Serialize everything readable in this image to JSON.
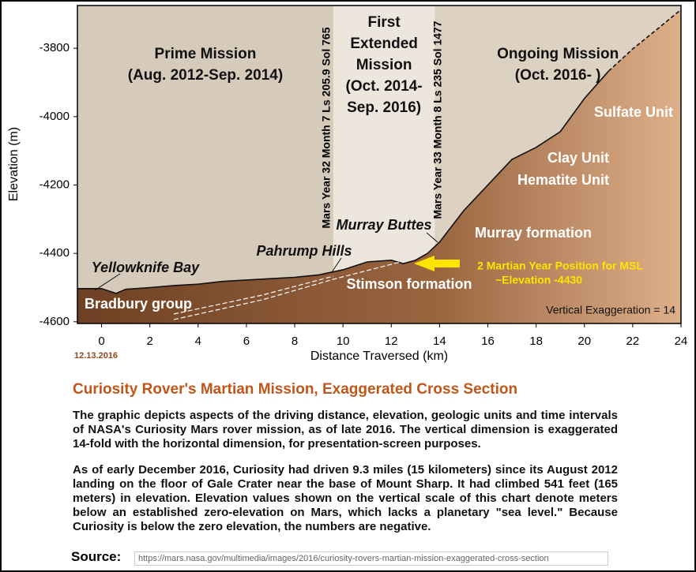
{
  "chart_data": {
    "type": "area",
    "x_label": "Distance Traversed (km)",
    "y_label": "Elevation (m)",
    "x": [
      -1,
      0,
      0.6,
      1,
      2,
      3,
      4,
      5,
      6,
      7,
      8,
      9,
      10,
      11,
      12,
      12.5,
      13,
      13.5,
      14,
      15,
      16,
      17,
      18,
      19,
      20,
      21,
      22,
      23,
      24
    ],
    "series": [
      {
        "style": "solid",
        "values": [
          -4503,
          -4503,
          -4517,
          -4505,
          -4500,
          -4494,
          -4490,
          -4482,
          -4478,
          -4474,
          -4470,
          -4463,
          -4448,
          -4425,
          -4420,
          -4430,
          -4420,
          -4400,
          -4367,
          -4275,
          -4200,
          -4125,
          -4090,
          -4044,
          -3947,
          -3867,
          null,
          null,
          null
        ]
      },
      {
        "style": "dashed",
        "values": [
          null,
          null,
          null,
          null,
          null,
          null,
          null,
          null,
          null,
          null,
          null,
          null,
          null,
          null,
          null,
          null,
          null,
          null,
          null,
          null,
          null,
          null,
          null,
          null,
          null,
          -3867,
          -3802,
          -3745,
          -3687
        ]
      }
    ],
    "xlim": [
      -1,
      24
    ],
    "xticks": [
      0,
      2,
      4,
      6,
      8,
      10,
      12,
      14,
      16,
      18,
      20,
      22,
      24
    ],
    "ylim": [
      -4605,
      -3675
    ],
    "yticks": [
      -4600,
      -4400,
      -4200,
      -4000,
      -3800
    ],
    "regions": [
      {
        "lines": [
          "Prime Mission",
          "(Aug. 2012-Sep. 2014)"
        ],
        "x0": -1,
        "x1": 9.6,
        "color": "#d6cabb"
      },
      {
        "lines": [
          "First",
          "Extended",
          "Mission",
          "(Oct. 2014-",
          "Sep. 2016)"
        ],
        "x0": 9.6,
        "x1": 13.8,
        "color": "#ede6dd"
      },
      {
        "lines": [
          "Ongoing Mission",
          "(Oct. 2016- )"
        ],
        "x0": 13.8,
        "x1": 24,
        "color": "#ddd1c2"
      }
    ],
    "sol_labels": [
      "Mars Year 32 Month 7 Ls 205.9 Sol 765",
      "Mars Year 33 Month 8 Ls 235 Sol 1477"
    ],
    "units": [
      "Sulfate Unit",
      "Clay Unit",
      "Hematite Unit",
      "Murray formation",
      "Stimson formation",
      "Bradbury group"
    ],
    "places": [
      "Yellowknife Bay",
      "Pahrump Hills",
      "Murray Buttes"
    ],
    "position_note": [
      "2 Martian Year Position for MSL",
      "~Elevation -4430"
    ],
    "exaggeration_note": "Vertical Exaggeration = 14",
    "date": "12.13.2016"
  },
  "document": {
    "title": "Curiosity Rover's Martian Mission, Exaggerated Cross Section",
    "paragraphs": [
      "The graphic depicts aspects of the driving distance, elevation, geologic units and time intervals of NASA's Curiosity Mars rover mission, as of late 2016. The vertical dimension is exaggerated 14-fold with the horizontal dimension, for presentation-screen purposes.",
      "As of early December 2016, Curiosity had driven 9.3 miles (15 kilometers) since its August 2012 landing on the floor of Gale Crater near the base of Mount Sharp. It had climbed 541 feet (165 meters) in elevation. Elevation values shown on the vertical scale of this chart denote meters below an established zero-elevation on Mars, which lacks a planetary \"sea level.\" Because Curiosity is below the zero elevation, the numbers are negative."
    ],
    "source_label": "Source:",
    "source_url": "https://mars.nasa.gov/multimedia/images/2016/curiosity-rovers-martian-mission-exaggerated-cross-section"
  }
}
